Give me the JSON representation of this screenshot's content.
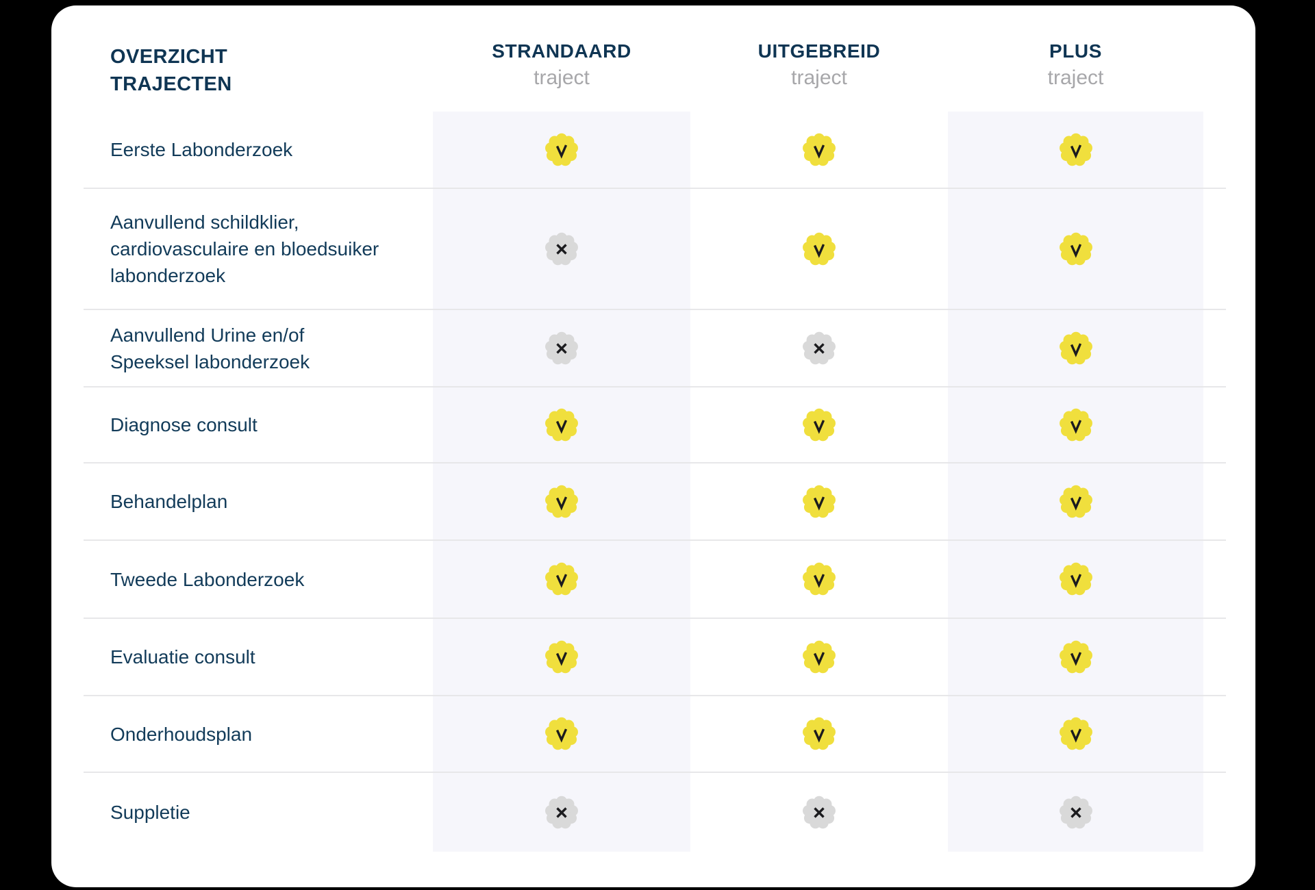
{
  "table": {
    "title_line1": "OVERZICHT",
    "title_line2": "TRAJECTEN",
    "columns": [
      {
        "name": "STRANDAARD",
        "sub": "traject"
      },
      {
        "name": "UITGEBREID",
        "sub": "traject"
      },
      {
        "name": "PLUS",
        "sub": "traject"
      }
    ],
    "rows": [
      {
        "label": "Eerste Labonderzoek",
        "standaard": "yes",
        "uitgebreid": "yes",
        "plus": "yes"
      },
      {
        "label": "Aanvullend schildklier,\ncardiovasculaire en bloedsuiker\nlabonderzoek",
        "standaard": "no",
        "uitgebreid": "yes",
        "plus": "yes"
      },
      {
        "label": "Aanvullend Urine en/of\nSpeeksel labonderzoek",
        "standaard": "no",
        "uitgebreid": "no",
        "plus": "yes"
      },
      {
        "label": "Diagnose consult",
        "standaard": "yes",
        "uitgebreid": "yes",
        "plus": "yes"
      },
      {
        "label": "Behandelplan",
        "standaard": "yes",
        "uitgebreid": "yes",
        "plus": "yes"
      },
      {
        "label": "Tweede Labonderzoek",
        "standaard": "yes",
        "uitgebreid": "yes",
        "plus": "yes"
      },
      {
        "label": "Evaluatie consult",
        "standaard": "yes",
        "uitgebreid": "yes",
        "plus": "yes"
      },
      {
        "label": "Onderhoudsplan",
        "standaard": "yes",
        "uitgebreid": "yes",
        "plus": "yes"
      },
      {
        "label": "Suppletie",
        "standaard": "no",
        "uitgebreid": "no",
        "plus": "no"
      }
    ],
    "icons": {
      "included": "check-badge-icon",
      "excluded": "cross-badge-icon"
    },
    "colors": {
      "accent_yellow": "#F0DF3D",
      "badge_gray": "#D9D9D9",
      "glyph_dark": "#1B1B1E",
      "navy_heading": "#0F3553",
      "navy_text": "#123B59",
      "sub_gray": "#A7A7AA",
      "panel_lavender": "#F6F6FB",
      "divider": "#E7E7E9",
      "page_background": "#000000",
      "card_background": "#FFFFFF"
    }
  }
}
